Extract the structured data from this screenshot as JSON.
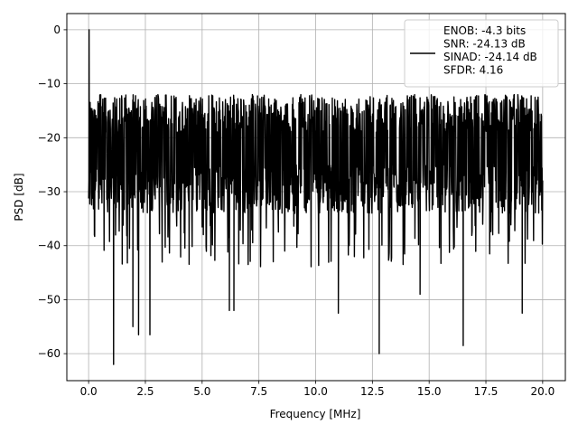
{
  "chart_data": {
    "type": "line",
    "title": "",
    "xlabel": "Frequency [MHz]",
    "ylabel": "PSD [dB]",
    "xlim": [
      -0.96,
      21.0
    ],
    "ylim": [
      -65,
      3
    ],
    "xticks": [
      0.0,
      2.5,
      5.0,
      7.5,
      10.0,
      12.5,
      15.0,
      17.5,
      20.0
    ],
    "xtick_labels": [
      "0.0",
      "2.5",
      "5.0",
      "7.5",
      "10.0",
      "12.5",
      "15.0",
      "17.5",
      "20.0"
    ],
    "yticks": [
      0,
      -10,
      -20,
      -30,
      -40,
      -50,
      -60
    ],
    "ytick_labels": [
      "0",
      "−10",
      "−20",
      "−30",
      "−40",
      "−50",
      "−60"
    ],
    "grid": true,
    "legend_position": "top-right",
    "line_color": "#000000",
    "series": [
      {
        "legend_lines": [
          "ENOB: -4.3 bits",
          "SNR: -24.13 dB",
          "SINAD: -24.14 dB",
          "SFDR: 4.16"
        ],
        "x_start": 0.0,
        "x_end": 20.0,
        "noise_upper_db": -12,
        "noise_lower_db": -34,
        "peaks": [
          {
            "x": 0.02,
            "y": 0.0
          }
        ],
        "dips": [
          {
            "x": 1.1,
            "y": -62
          },
          {
            "x": 1.95,
            "y": -55
          },
          {
            "x": 2.2,
            "y": -56.5
          },
          {
            "x": 2.7,
            "y": -56.5
          },
          {
            "x": 6.2,
            "y": -52
          },
          {
            "x": 6.4,
            "y": -52
          },
          {
            "x": 11.0,
            "y": -52.5
          },
          {
            "x": 12.8,
            "y": -60
          },
          {
            "x": 14.6,
            "y": -49
          },
          {
            "x": 16.5,
            "y": -58.5
          },
          {
            "x": 19.1,
            "y": -52.5
          }
        ]
      }
    ]
  }
}
